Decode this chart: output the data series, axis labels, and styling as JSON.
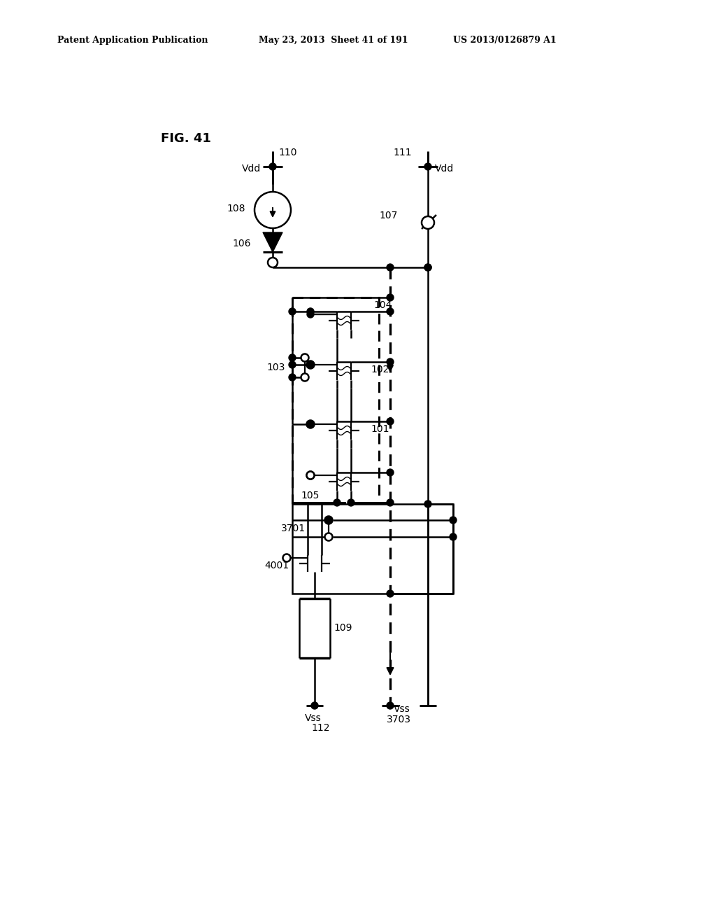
{
  "header_left": "Patent Application Publication",
  "header_mid": "May 23, 2013  Sheet 41 of 191",
  "header_right": "US 2013/0126879 A1",
  "fig_label": "FIG. 41",
  "bg_color": "#ffffff"
}
